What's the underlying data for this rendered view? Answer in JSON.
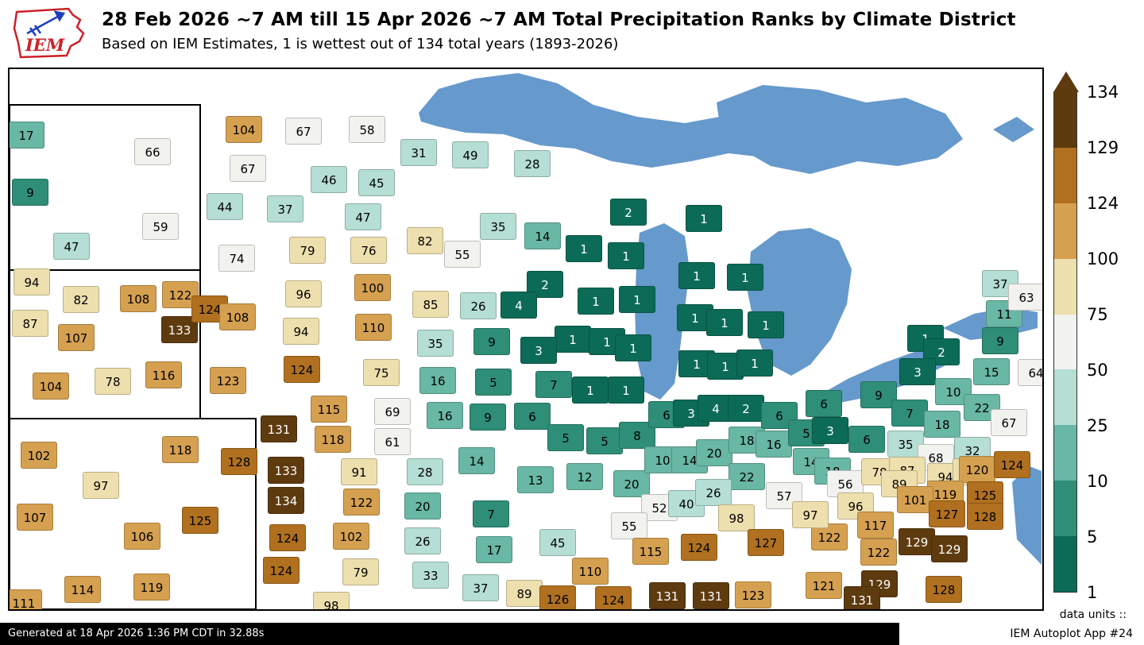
{
  "header": {
    "logo_text": "IEM",
    "title": "28 Feb 2026 ~7 AM till 15 Apr 2026 ~7 AM Total Precipitation Ranks by Climate District",
    "subtitle": "Based on IEM Estimates, 1 is wettest out of 134 total years (1893-2026)"
  },
  "footer": {
    "generated": "Generated at 18 Apr 2026 1:36 PM CDT in 32.88s",
    "app": "IEM Autoplot App #24",
    "units_label": "data units ::"
  },
  "legend": {
    "ticks": [
      134,
      129,
      124,
      100,
      75,
      50,
      25,
      10,
      5,
      1
    ],
    "bin_edges": [
      1,
      5,
      10,
      25,
      50,
      75,
      100,
      124,
      129,
      134
    ],
    "colors_low_to_high": [
      "#0c6b57",
      "#2e8e78",
      "#69b7a5",
      "#b5ded4",
      "#f2f2ef",
      "#eedfae",
      "#d5a050",
      "#b0701f",
      "#5e3a0f"
    ]
  },
  "map": {
    "water_color": "#6699cc",
    "districts": [
      [
        17,
        21,
        83
      ],
      [
        66,
        180,
        104
      ],
      [
        9,
        26,
        155
      ],
      [
        59,
        190,
        198
      ],
      [
        47,
        78,
        223
      ],
      [
        104,
        295,
        76
      ],
      [
        67,
        370,
        78
      ],
      [
        58,
        450,
        76
      ],
      [
        67,
        300,
        125
      ],
      [
        46,
        402,
        139
      ],
      [
        45,
        462,
        143
      ],
      [
        44,
        271,
        173
      ],
      [
        37,
        347,
        176
      ],
      [
        47,
        445,
        186
      ],
      [
        74,
        286,
        238
      ],
      [
        79,
        375,
        228
      ],
      [
        76,
        452,
        228
      ],
      [
        96,
        370,
        283
      ],
      [
        100,
        457,
        275
      ],
      [
        94,
        367,
        330
      ],
      [
        110,
        458,
        325
      ],
      [
        94,
        28,
        268
      ],
      [
        82,
        90,
        290
      ],
      [
        108,
        162,
        289
      ],
      [
        122,
        215,
        284
      ],
      [
        87,
        26,
        320
      ],
      [
        107,
        84,
        338
      ],
      [
        133,
        214,
        328
      ],
      [
        104,
        52,
        399
      ],
      [
        78,
        130,
        393
      ],
      [
        116,
        194,
        385
      ],
      [
        124,
        252,
        302
      ],
      [
        108,
        287,
        312
      ],
      [
        123,
        275,
        392
      ],
      [
        102,
        37,
        486
      ],
      [
        118,
        215,
        479
      ],
      [
        128,
        289,
        494
      ],
      [
        97,
        115,
        524
      ],
      [
        107,
        32,
        564
      ],
      [
        106,
        167,
        588
      ],
      [
        125,
        240,
        568
      ],
      [
        114,
        92,
        655
      ],
      [
        119,
        179,
        652
      ],
      [
        111,
        18,
        672
      ],
      [
        124,
        368,
        378
      ],
      [
        75,
        468,
        382
      ],
      [
        115,
        402,
        428
      ],
      [
        69,
        482,
        431
      ],
      [
        131,
        339,
        453
      ],
      [
        118,
        407,
        466
      ],
      [
        61,
        482,
        469
      ],
      [
        133,
        348,
        505
      ],
      [
        91,
        440,
        507
      ],
      [
        134,
        348,
        543
      ],
      [
        122,
        443,
        545
      ],
      [
        124,
        350,
        590
      ],
      [
        102,
        430,
        588
      ],
      [
        124,
        342,
        631
      ],
      [
        79,
        442,
        633
      ],
      [
        98,
        405,
        675
      ],
      [
        31,
        515,
        105
      ],
      [
        49,
        580,
        108
      ],
      [
        28,
        658,
        119
      ],
      [
        35,
        615,
        198
      ],
      [
        14,
        671,
        210
      ],
      [
        82,
        523,
        216
      ],
      [
        55,
        570,
        233
      ],
      [
        85,
        530,
        296
      ],
      [
        26,
        590,
        298
      ],
      [
        2,
        779,
        180
      ],
      [
        1,
        874,
        188
      ],
      [
        1,
        723,
        226
      ],
      [
        1,
        776,
        235
      ],
      [
        2,
        674,
        271
      ],
      [
        4,
        641,
        297
      ],
      [
        1,
        738,
        292
      ],
      [
        1,
        790,
        290
      ],
      [
        1,
        709,
        340
      ],
      [
        1,
        752,
        343
      ],
      [
        1,
        785,
        351
      ],
      [
        1,
        731,
        404
      ],
      [
        1,
        776,
        404
      ],
      [
        1,
        865,
        260
      ],
      [
        1,
        926,
        262
      ],
      [
        1,
        863,
        313
      ],
      [
        1,
        900,
        319
      ],
      [
        1,
        952,
        322
      ],
      [
        1,
        865,
        371
      ],
      [
        1,
        901,
        374
      ],
      [
        1,
        938,
        370
      ],
      [
        35,
        536,
        345
      ],
      [
        9,
        607,
        343
      ],
      [
        3,
        666,
        354
      ],
      [
        16,
        539,
        392
      ],
      [
        5,
        609,
        394
      ],
      [
        7,
        685,
        397
      ],
      [
        16,
        548,
        436
      ],
      [
        9,
        602,
        438
      ],
      [
        6,
        658,
        437
      ],
      [
        5,
        700,
        464
      ],
      [
        5,
        749,
        468
      ],
      [
        8,
        790,
        461
      ],
      [
        13,
        662,
        517
      ],
      [
        12,
        724,
        513
      ],
      [
        20,
        783,
        522
      ],
      [
        14,
        588,
        493
      ],
      [
        7,
        606,
        560
      ],
      [
        52,
        818,
        552
      ],
      [
        40,
        852,
        547
      ],
      [
        55,
        780,
        575
      ],
      [
        28,
        523,
        507
      ],
      [
        20,
        520,
        550
      ],
      [
        26,
        520,
        594
      ],
      [
        17,
        610,
        605
      ],
      [
        45,
        690,
        596
      ],
      [
        33,
        530,
        637
      ],
      [
        37,
        593,
        653
      ],
      [
        89,
        648,
        660
      ],
      [
        110,
        731,
        632
      ],
      [
        126,
        690,
        667
      ],
      [
        124,
        760,
        668
      ],
      [
        6,
        827,
        435
      ],
      [
        3,
        858,
        433
      ],
      [
        4,
        889,
        427
      ],
      [
        10,
        822,
        492
      ],
      [
        14,
        856,
        492
      ],
      [
        20,
        887,
        483
      ],
      [
        18,
        928,
        467
      ],
      [
        16,
        962,
        472
      ],
      [
        22,
        928,
        513
      ],
      [
        26,
        886,
        533
      ],
      [
        98,
        915,
        565
      ],
      [
        2,
        927,
        427
      ],
      [
        6,
        969,
        436
      ],
      [
        6,
        1025,
        421
      ],
      [
        5,
        1003,
        458
      ],
      [
        3,
        1033,
        455
      ],
      [
        6,
        1079,
        466
      ],
      [
        14,
        1009,
        494
      ],
      [
        18,
        1036,
        506
      ],
      [
        9,
        1094,
        410
      ],
      [
        7,
        1133,
        433
      ],
      [
        35,
        1128,
        472
      ],
      [
        18,
        1174,
        447
      ],
      [
        68,
        1166,
        489
      ],
      [
        56,
        1052,
        522
      ],
      [
        57,
        975,
        537
      ],
      [
        1,
        1153,
        339
      ],
      [
        2,
        1173,
        356
      ],
      [
        3,
        1143,
        381
      ],
      [
        10,
        1188,
        406
      ],
      [
        22,
        1224,
        426
      ],
      [
        9,
        1247,
        342
      ],
      [
        11,
        1252,
        308
      ],
      [
        37,
        1247,
        270
      ],
      [
        63,
        1280,
        287
      ],
      [
        15,
        1236,
        381
      ],
      [
        64,
        1292,
        382
      ],
      [
        67,
        1258,
        445
      ],
      [
        32,
        1212,
        480
      ],
      [
        78,
        1095,
        507
      ],
      [
        87,
        1130,
        505
      ],
      [
        89,
        1120,
        522
      ],
      [
        94,
        1178,
        513
      ],
      [
        91,
        1210,
        507
      ],
      [
        120,
        1218,
        504
      ],
      [
        124,
        1262,
        498
      ],
      [
        119,
        1178,
        535
      ],
      [
        101,
        1140,
        542
      ],
      [
        125,
        1228,
        536
      ],
      [
        127,
        1180,
        560
      ],
      [
        128,
        1228,
        563
      ],
      [
        129,
        1142,
        595
      ],
      [
        129,
        1183,
        604
      ],
      [
        96,
        1065,
        550
      ],
      [
        117,
        1090,
        574
      ],
      [
        122,
        1032,
        589
      ],
      [
        122,
        1094,
        608
      ],
      [
        97,
        1008,
        561
      ],
      [
        124,
        868,
        602
      ],
      [
        127,
        952,
        596
      ],
      [
        115,
        807,
        607
      ],
      [
        131,
        828,
        663
      ],
      [
        131,
        883,
        663
      ],
      [
        123,
        936,
        662
      ],
      [
        121,
        1025,
        650
      ],
      [
        129,
        1095,
        648
      ],
      [
        131,
        1073,
        668
      ],
      [
        128,
        1176,
        655
      ]
    ]
  }
}
